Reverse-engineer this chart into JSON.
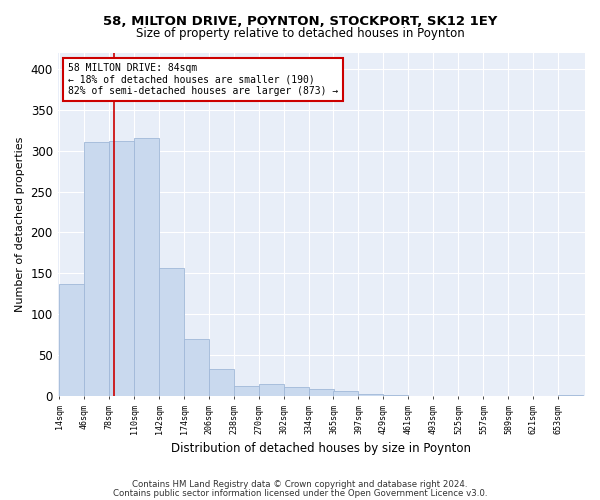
{
  "title1": "58, MILTON DRIVE, POYNTON, STOCKPORT, SK12 1EY",
  "title2": "Size of property relative to detached houses in Poynton",
  "xlabel": "Distribution of detached houses by size in Poynton",
  "ylabel": "Number of detached properties",
  "bar_color": "#c9d9ee",
  "bar_edge_color": "#a0b8d8",
  "background_color": "#e8eef8",
  "grid_color": "#ffffff",
  "property_size": 84,
  "annotation_line_color": "#cc0000",
  "annotation_box_color": "#cc0000",
  "annotation_text": [
    "58 MILTON DRIVE: 84sqm",
    "← 18% of detached houses are smaller (190)",
    "82% of semi-detached houses are larger (873) →"
  ],
  "footer1": "Contains HM Land Registry data © Crown copyright and database right 2024.",
  "footer2": "Contains public sector information licensed under the Open Government Licence v3.0.",
  "bin_left_edges": [
    14,
    46,
    78,
    110,
    142,
    174,
    206,
    238,
    270,
    302,
    334,
    365,
    397,
    429,
    461,
    493,
    525,
    557,
    589,
    621,
    653
  ],
  "counts": [
    137,
    310,
    312,
    315,
    157,
    70,
    33,
    12,
    15,
    11,
    8,
    6,
    3,
    1,
    0,
    0,
    0,
    0,
    0,
    0,
    1
  ],
  "ylim": [
    0,
    420
  ],
  "yticks": [
    0,
    50,
    100,
    150,
    200,
    250,
    300,
    350,
    400
  ],
  "bin_width": 32,
  "fig_bg": "#ffffff"
}
